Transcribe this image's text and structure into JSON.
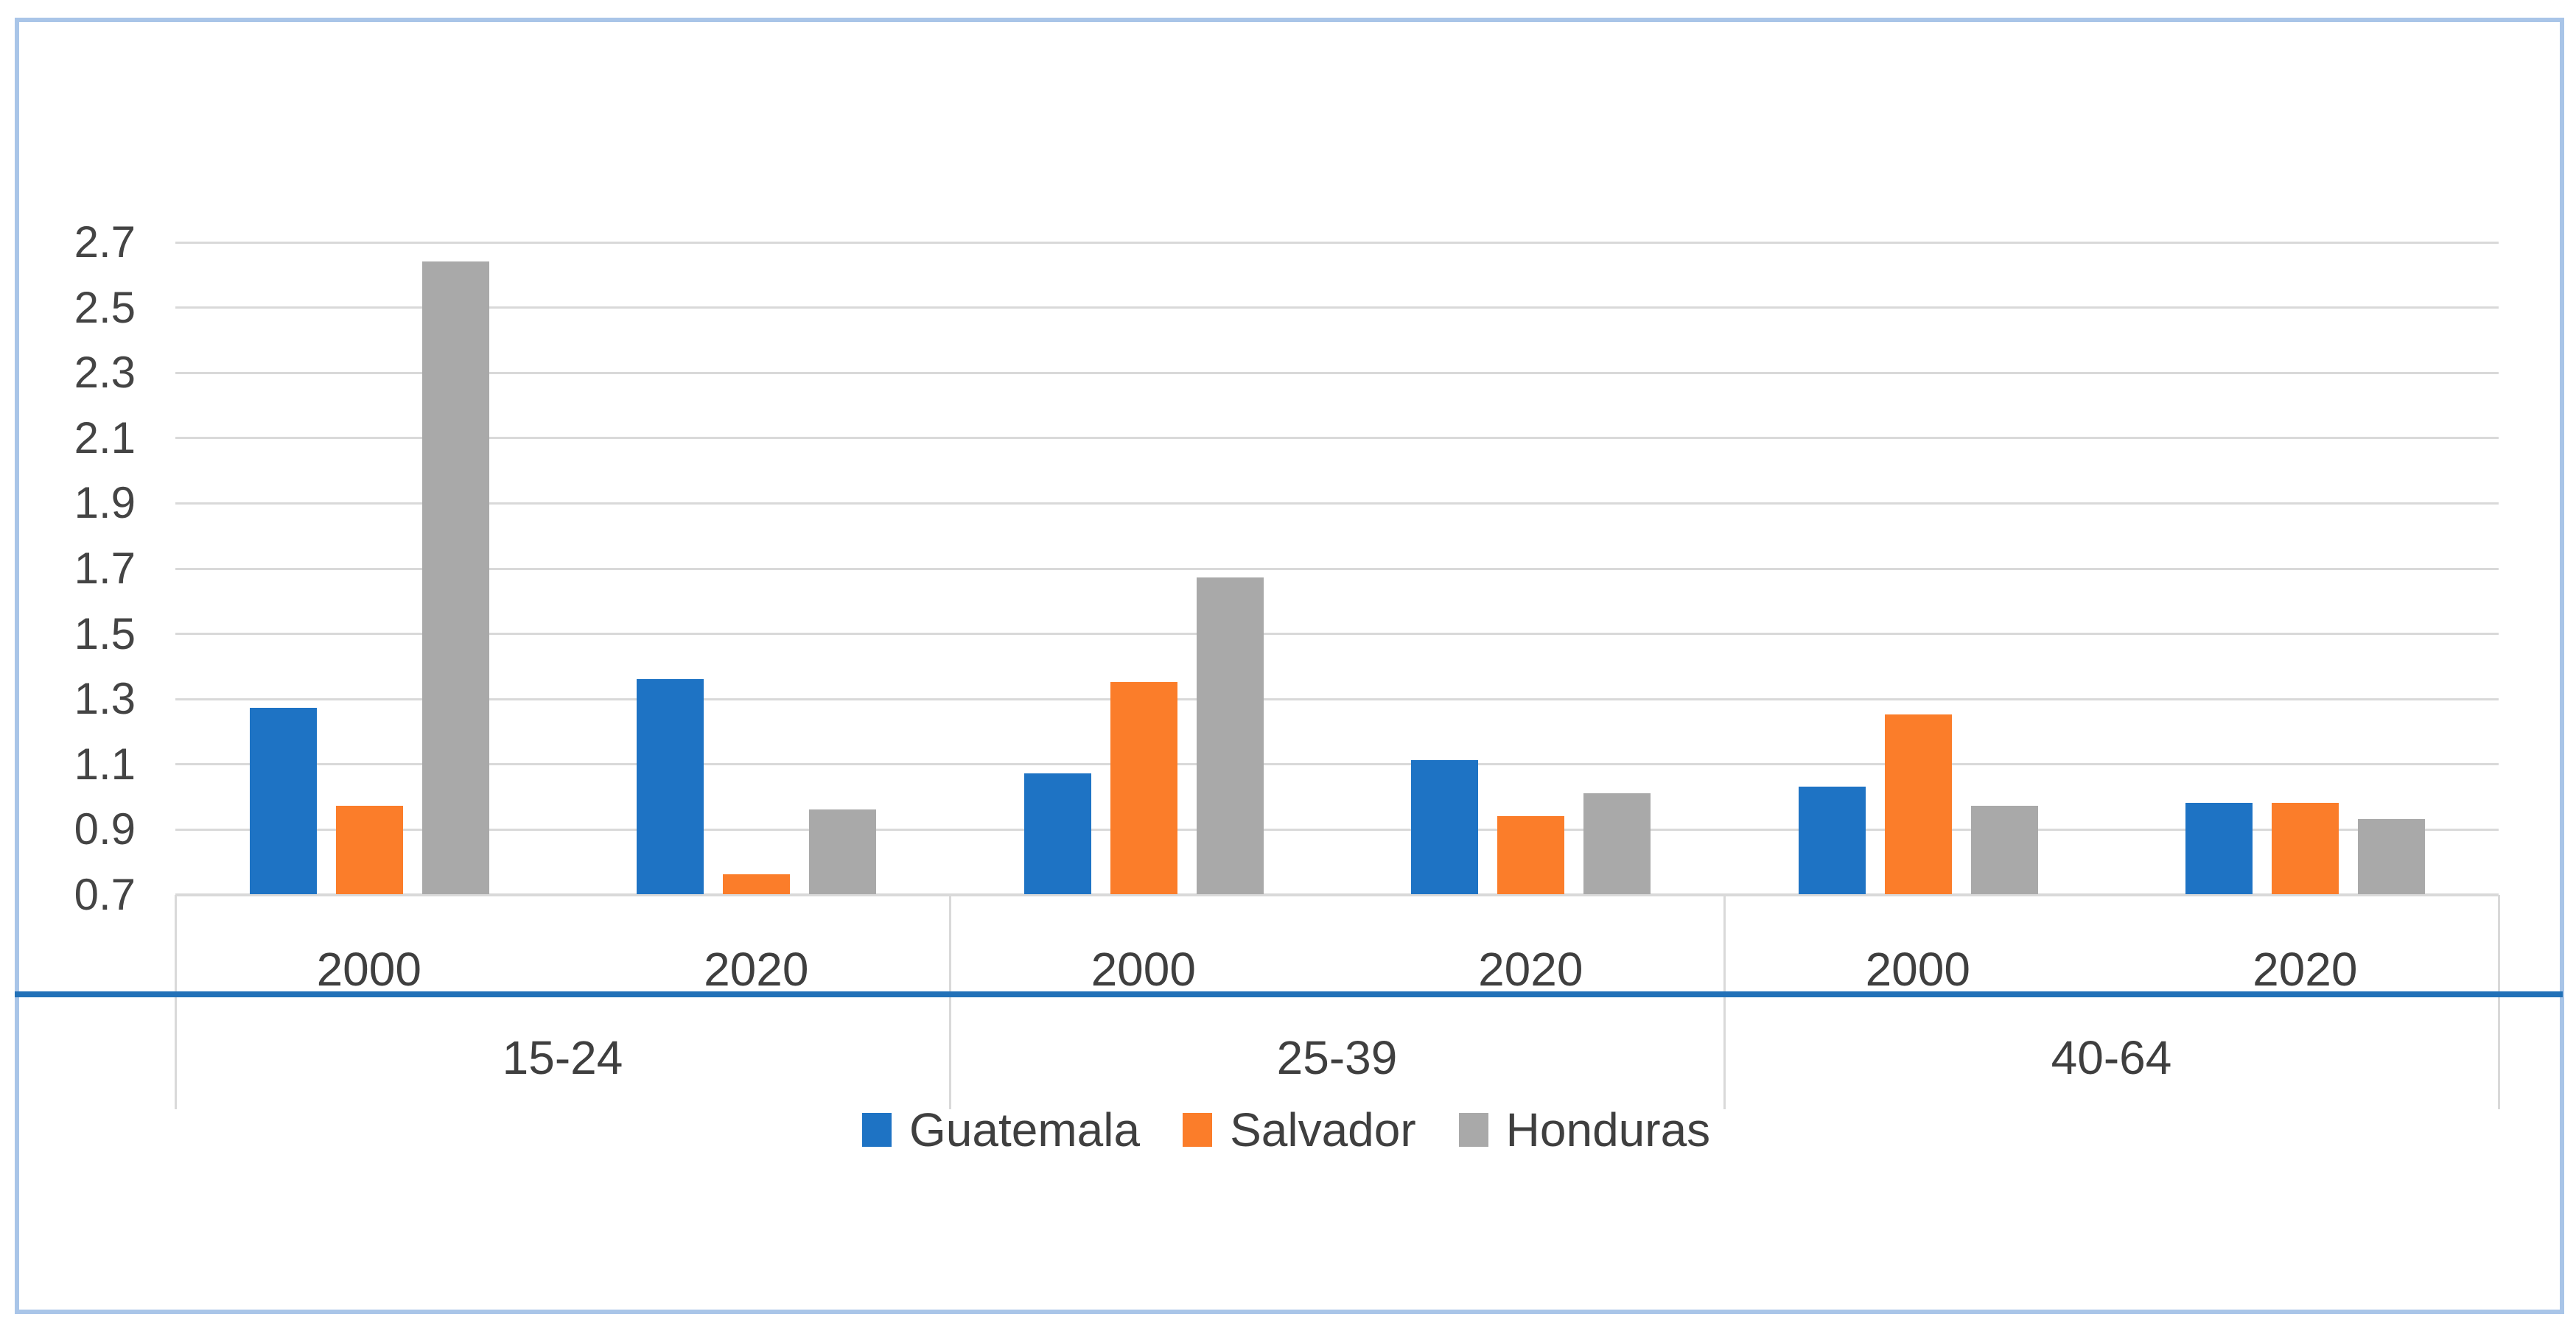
{
  "chart_data": {
    "type": "bar",
    "title": "",
    "group_labels": [
      "15-24",
      "25-39",
      "40-64"
    ],
    "year_labels_per_cell": [
      "2000",
      "2020",
      "2000",
      "2020",
      "2000",
      "2020"
    ],
    "categories": [
      "15-24 2000",
      "15-24 2020",
      "25-39 2000",
      "25-39 2020",
      "40-64 2000",
      "40-64 2020"
    ],
    "series": [
      {
        "name": "Guatemala",
        "color": "#1E73C4",
        "values": [
          1.27,
          1.36,
          1.07,
          1.11,
          1.03,
          0.98
        ]
      },
      {
        "name": "Salvador",
        "color": "#FB7D2A",
        "values": [
          0.97,
          0.76,
          1.35,
          0.94,
          1.25,
          0.98
        ]
      },
      {
        "name": "Honduras",
        "color": "#A9A9A9",
        "values": [
          2.64,
          0.96,
          1.67,
          1.01,
          0.97,
          0.93
        ]
      }
    ],
    "y_axis": {
      "min": 0.7,
      "max": 2.7,
      "step": 0.2,
      "tick_labels": [
        "2.7",
        "2.5",
        "2.3",
        "2.1",
        "1.9",
        "1.7",
        "1.5",
        "1.3",
        "1.1",
        "0.9",
        "0.7"
      ]
    },
    "xlabel": "",
    "ylabel": "",
    "grid": true,
    "legend": {
      "position": "bottom",
      "items": [
        "Guatemala",
        "Salvador",
        "Honduras"
      ]
    }
  },
  "colors": {
    "gridline": "#D9D9D9",
    "axis_line": "#D9D9D9",
    "divider": "#D9D9D9",
    "blue_rule": "#2271B8",
    "text": "#3f3f3f",
    "frame": "#A9C5E8",
    "background": "#FFFFFF"
  }
}
